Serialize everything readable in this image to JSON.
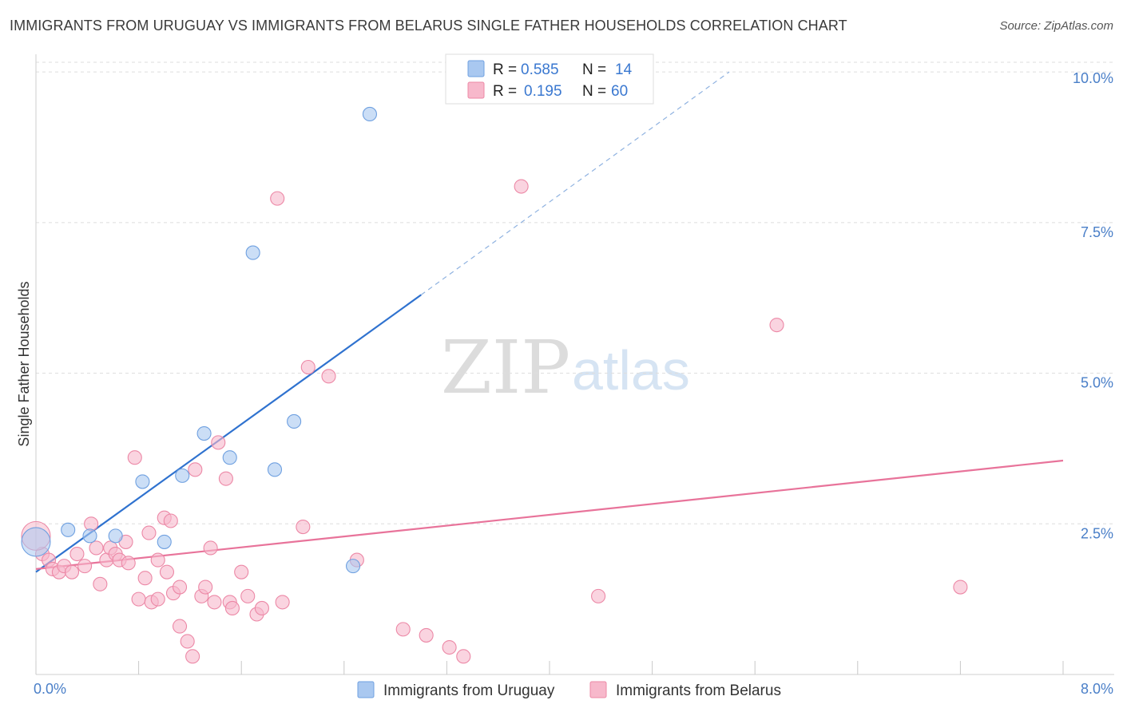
{
  "title": "IMMIGRANTS FROM URUGUAY VS IMMIGRANTS FROM BELARUS SINGLE FATHER HOUSEHOLDS CORRELATION CHART",
  "source": "Source: ZipAtlas.com",
  "watermark": {
    "zip": "ZIP",
    "atlas": "atlas"
  },
  "legend": {
    "r_label": "R =",
    "n_label": "N =",
    "rows": [
      {
        "name": "uruguay",
        "r": "0.585",
        "n": "14",
        "color": "#a9c8f0",
        "stroke": "#6fa0e0"
      },
      {
        "name": "belarus",
        "r": "0.195",
        "n": "60",
        "color": "#f7b8cb",
        "stroke": "#ec88a6"
      }
    ]
  },
  "bottom_legend": [
    {
      "label": "Immigrants from Uruguay",
      "color": "#a9c8f0",
      "stroke": "#6fa0e0"
    },
    {
      "label": "Immigrants from Belarus",
      "color": "#f7b8cb",
      "stroke": "#ec88a6"
    }
  ],
  "chart_data": {
    "type": "scatter",
    "title": "IMMIGRANTS FROM URUGUAY VS IMMIGRANTS FROM BELARUS SINGLE FATHER HOUSEHOLDS CORRELATION CHART",
    "xlabel": "",
    "ylabel": "Single Father Households",
    "xlim": [
      0,
      8
    ],
    "ylim": [
      0,
      10.2
    ],
    "x_tick_labels": [
      "0.0%",
      "8.0%"
    ],
    "y_ticks": [
      {
        "value": 2.5,
        "label": "2.5%"
      },
      {
        "value": 5.0,
        "label": "5.0%"
      },
      {
        "value": 7.5,
        "label": "7.5%"
      },
      {
        "value": 10.0,
        "label": "10.0%"
      }
    ],
    "series": [
      {
        "name": "Immigrants from Uruguay",
        "color": "#6fa0e0",
        "fill": "#a9c8f0",
        "r": 0.585,
        "n": 14,
        "points": [
          [
            0.0,
            2.2
          ],
          [
            0.25,
            2.4
          ],
          [
            0.42,
            2.3
          ],
          [
            0.62,
            2.3
          ],
          [
            0.83,
            3.2
          ],
          [
            1.0,
            2.2
          ],
          [
            1.14,
            3.3
          ],
          [
            1.31,
            4.0
          ],
          [
            1.51,
            3.6
          ],
          [
            1.69,
            7.0
          ],
          [
            1.86,
            3.4
          ],
          [
            2.01,
            4.2
          ],
          [
            2.47,
            1.8
          ],
          [
            2.6,
            9.3
          ]
        ],
        "trend": {
          "x": [
            0.0,
            3.0
          ],
          "y": [
            1.7,
            6.3
          ],
          "dashed_extension": {
            "x": [
              3.0,
              5.4
            ],
            "y": [
              6.3,
              10.0
            ]
          }
        }
      },
      {
        "name": "Immigrants from Belarus",
        "color": "#ec88a6",
        "fill": "#f7b8cb",
        "r": 0.195,
        "n": 60,
        "points": [
          [
            0.05,
            2.0
          ],
          [
            0.1,
            1.9
          ],
          [
            0.13,
            1.75
          ],
          [
            0.18,
            1.7
          ],
          [
            0.22,
            1.8
          ],
          [
            0.28,
            1.7
          ],
          [
            0.32,
            2.0
          ],
          [
            0.38,
            1.8
          ],
          [
            0.43,
            2.5
          ],
          [
            0.47,
            2.1
          ],
          [
            0.5,
            1.5
          ],
          [
            0.55,
            1.9
          ],
          [
            0.58,
            2.1
          ],
          [
            0.62,
            2.0
          ],
          [
            0.65,
            1.9
          ],
          [
            0.7,
            2.2
          ],
          [
            0.72,
            1.85
          ],
          [
            0.77,
            3.6
          ],
          [
            0.8,
            1.25
          ],
          [
            0.85,
            1.6
          ],
          [
            0.88,
            2.35
          ],
          [
            0.9,
            1.2
          ],
          [
            0.95,
            1.25
          ],
          [
            1.0,
            2.6
          ],
          [
            1.02,
            1.7
          ],
          [
            1.05,
            2.55
          ],
          [
            1.07,
            1.35
          ],
          [
            1.12,
            1.45
          ],
          [
            1.12,
            0.8
          ],
          [
            1.18,
            0.55
          ],
          [
            1.22,
            0.3
          ],
          [
            1.24,
            3.4
          ],
          [
            1.29,
            1.3
          ],
          [
            1.32,
            1.45
          ],
          [
            1.36,
            2.1
          ],
          [
            1.39,
            1.2
          ],
          [
            1.42,
            3.85
          ],
          [
            1.48,
            3.25
          ],
          [
            1.51,
            1.2
          ],
          [
            1.53,
            1.1
          ],
          [
            1.6,
            1.7
          ],
          [
            1.65,
            1.3
          ],
          [
            1.72,
            1.0
          ],
          [
            1.76,
            1.1
          ],
          [
            1.88,
            7.9
          ],
          [
            1.92,
            1.2
          ],
          [
            2.08,
            2.45
          ],
          [
            2.12,
            5.1
          ],
          [
            2.28,
            4.95
          ],
          [
            2.5,
            1.9
          ],
          [
            2.86,
            0.75
          ],
          [
            3.04,
            0.65
          ],
          [
            3.22,
            0.45
          ],
          [
            3.33,
            0.3
          ],
          [
            3.78,
            8.1
          ],
          [
            4.38,
            1.3
          ],
          [
            5.77,
            5.8
          ],
          [
            7.2,
            1.45
          ],
          [
            0.0,
            2.3
          ],
          [
            0.95,
            1.9
          ]
        ],
        "trend": {
          "x": [
            0.0,
            8.0
          ],
          "y": [
            1.75,
            3.55
          ]
        }
      }
    ]
  }
}
